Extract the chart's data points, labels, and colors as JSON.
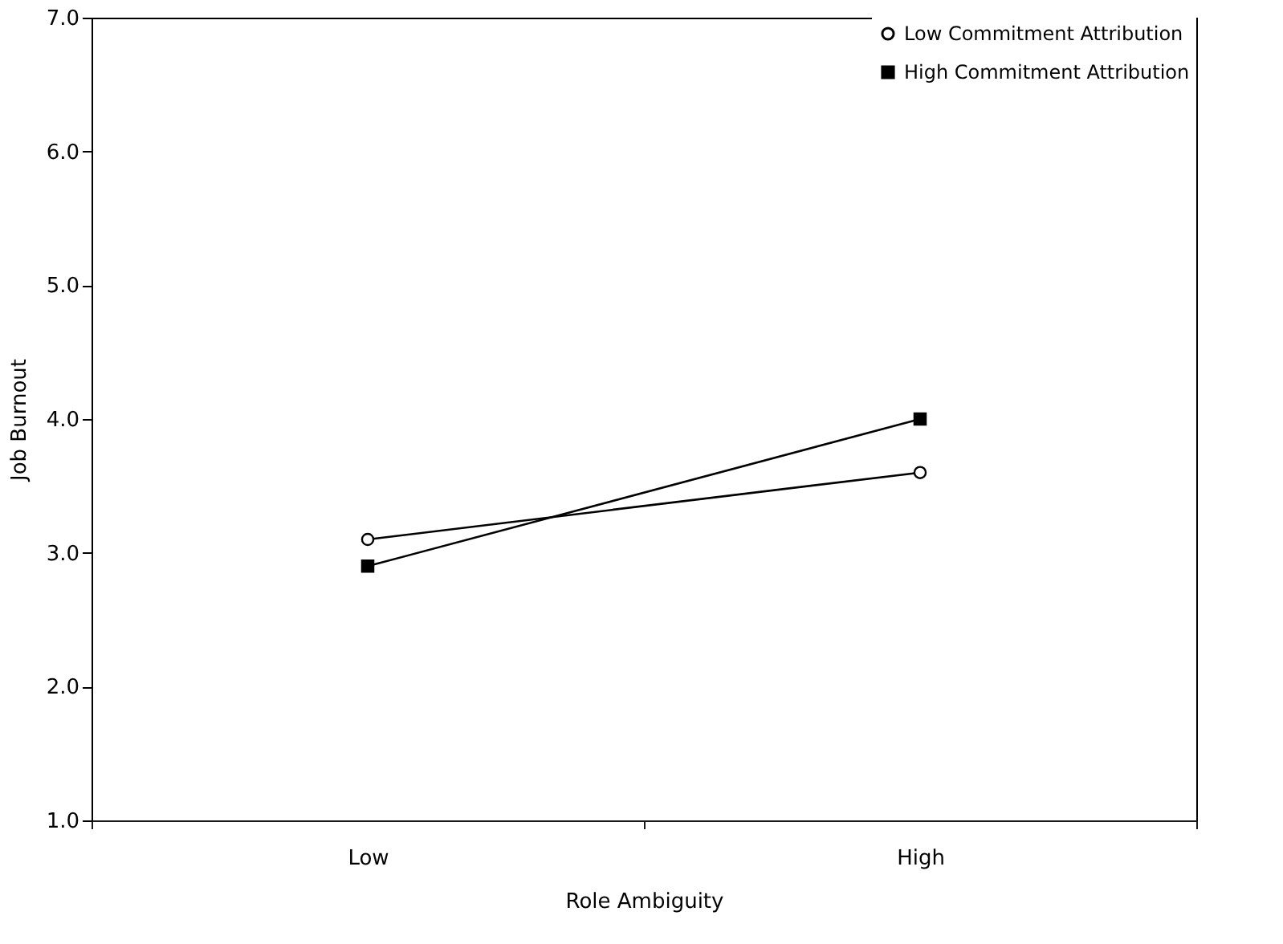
{
  "chart_data": {
    "type": "line",
    "xlabel": "Role Ambiguity",
    "ylabel": "Job Burnout",
    "categories": [
      "Low",
      "High"
    ],
    "series": [
      {
        "name": "Low Commitment Attribution",
        "color": "#000000",
        "marker": "circle",
        "values": [
          3.1,
          3.6
        ]
      },
      {
        "name": "High Commitment Attribution",
        "color": "#000000",
        "marker": "square",
        "values": [
          2.9,
          4.0
        ]
      }
    ],
    "ylim": [
      1,
      7
    ],
    "yticks": [
      {
        "value": 1,
        "label": "1.0"
      },
      {
        "value": 2,
        "label": "2.0"
      },
      {
        "value": 3,
        "label": "3.0"
      },
      {
        "value": 4,
        "label": "4.0"
      },
      {
        "value": 5,
        "label": "5.0"
      },
      {
        "value": 6,
        "label": "6.0"
      },
      {
        "value": 7,
        "label": "7.0"
      }
    ],
    "grid": false,
    "legend": "top right"
  }
}
